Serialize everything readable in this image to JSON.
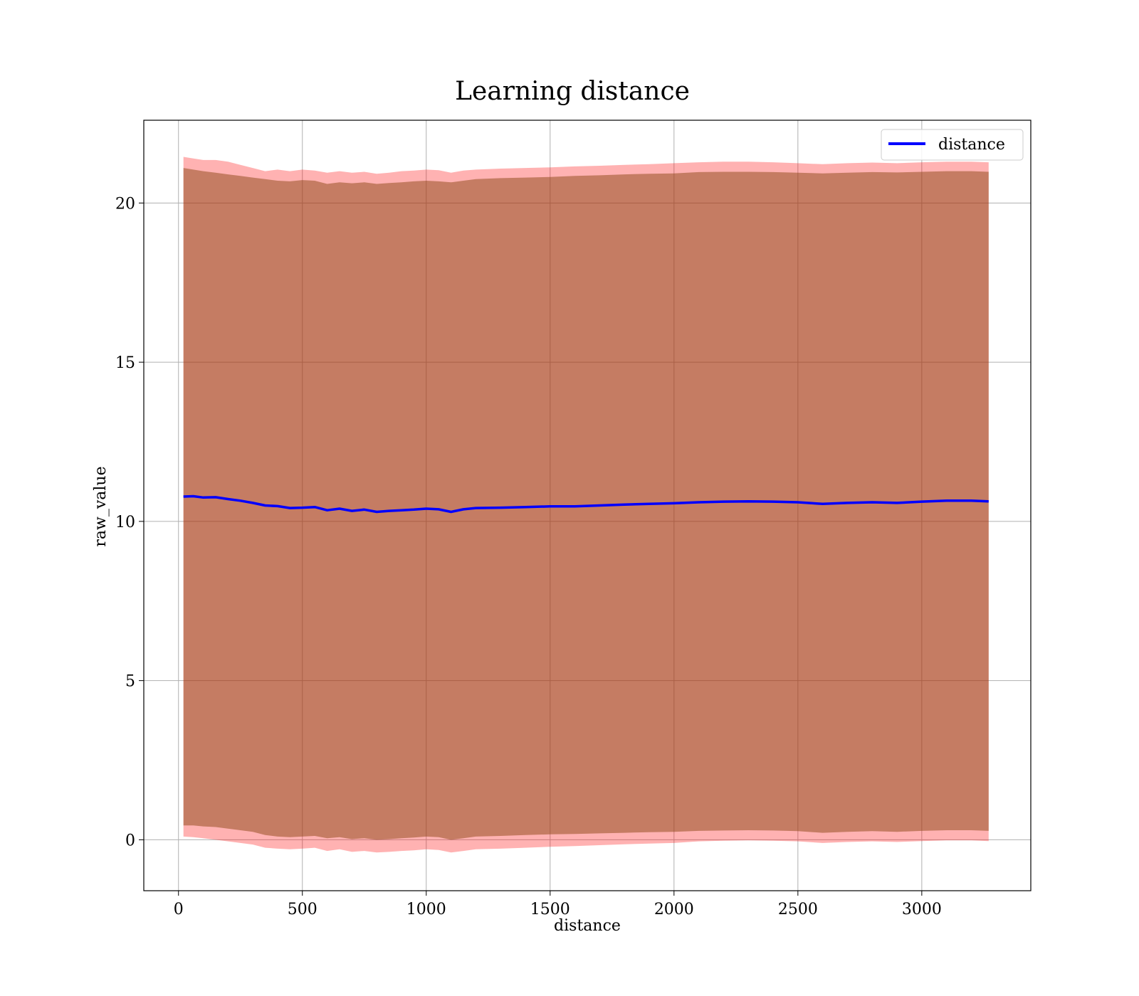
{
  "chart_data": {
    "type": "line",
    "title": "Learning distance",
    "xlabel": "distance",
    "ylabel": "raw_value",
    "xlim": [
      -140,
      3440
    ],
    "ylim": [
      -1.6,
      22.6
    ],
    "xticks": [
      0,
      500,
      1000,
      1500,
      2000,
      2500,
      3000
    ],
    "yticks": [
      0,
      5,
      10,
      15,
      20
    ],
    "grid": true,
    "legend": {
      "position": "top-right",
      "entries": [
        "distance"
      ]
    },
    "colors": {
      "line": "#0000ff",
      "inner_band": "#8b4513",
      "outer_band": "#ff0000",
      "grid": "#b0b0b0"
    },
    "series": [
      {
        "name": "distance",
        "x": [
          20,
          60,
          100,
          150,
          200,
          250,
          300,
          350,
          400,
          450,
          500,
          550,
          600,
          650,
          700,
          750,
          800,
          850,
          900,
          950,
          1000,
          1050,
          1100,
          1150,
          1200,
          1300,
          1400,
          1500,
          1600,
          1700,
          1800,
          1900,
          2000,
          2100,
          2200,
          2300,
          2400,
          2500,
          2600,
          2700,
          2800,
          2900,
          3000,
          3100,
          3200,
          3270
        ],
        "values": [
          10.78,
          10.79,
          10.75,
          10.76,
          10.7,
          10.65,
          10.58,
          10.5,
          10.48,
          10.42,
          10.43,
          10.45,
          10.35,
          10.4,
          10.33,
          10.37,
          10.3,
          10.33,
          10.35,
          10.37,
          10.4,
          10.38,
          10.3,
          10.38,
          10.42,
          10.43,
          10.45,
          10.47,
          10.47,
          10.5,
          10.53,
          10.55,
          10.57,
          10.6,
          10.62,
          10.63,
          10.62,
          10.6,
          10.55,
          10.58,
          10.6,
          10.58,
          10.62,
          10.65,
          10.65,
          10.63
        ],
        "inner_upper": [
          21.1,
          21.05,
          21.0,
          20.95,
          20.9,
          20.85,
          20.8,
          20.75,
          20.7,
          20.68,
          20.72,
          20.7,
          20.6,
          20.65,
          20.62,
          20.65,
          20.6,
          20.63,
          20.65,
          20.68,
          20.7,
          20.68,
          20.65,
          20.7,
          20.75,
          20.78,
          20.8,
          20.82,
          20.85,
          20.87,
          20.9,
          20.92,
          20.93,
          20.97,
          20.98,
          20.98,
          20.97,
          20.95,
          20.93,
          20.95,
          20.97,
          20.96,
          20.98,
          21.0,
          21.0,
          20.98
        ],
        "inner_lower": [
          0.45,
          0.45,
          0.42,
          0.4,
          0.35,
          0.3,
          0.25,
          0.15,
          0.1,
          0.08,
          0.1,
          0.12,
          0.05,
          0.08,
          0.02,
          0.05,
          0.0,
          0.02,
          0.05,
          0.07,
          0.1,
          0.08,
          0.0,
          0.05,
          0.1,
          0.12,
          0.15,
          0.17,
          0.18,
          0.2,
          0.22,
          0.24,
          0.25,
          0.28,
          0.29,
          0.3,
          0.29,
          0.27,
          0.22,
          0.25,
          0.27,
          0.25,
          0.28,
          0.3,
          0.3,
          0.28
        ],
        "outer_upper": [
          21.45,
          21.4,
          21.35,
          21.35,
          21.3,
          21.2,
          21.1,
          21.0,
          21.05,
          21.0,
          21.05,
          21.02,
          20.95,
          21.0,
          20.95,
          20.98,
          20.92,
          20.95,
          21.0,
          21.02,
          21.05,
          21.03,
          20.95,
          21.02,
          21.05,
          21.08,
          21.1,
          21.12,
          21.15,
          21.17,
          21.2,
          21.22,
          21.25,
          21.28,
          21.3,
          21.3,
          21.28,
          21.25,
          21.22,
          21.25,
          21.27,
          21.25,
          21.28,
          21.3,
          21.3,
          21.28
        ],
        "outer_lower": [
          0.1,
          0.08,
          0.05,
          0.0,
          -0.05,
          -0.1,
          -0.15,
          -0.25,
          -0.28,
          -0.3,
          -0.28,
          -0.25,
          -0.35,
          -0.3,
          -0.38,
          -0.35,
          -0.4,
          -0.38,
          -0.35,
          -0.33,
          -0.3,
          -0.32,
          -0.4,
          -0.35,
          -0.3,
          -0.28,
          -0.25,
          -0.22,
          -0.2,
          -0.17,
          -0.14,
          -0.12,
          -0.1,
          -0.05,
          -0.03,
          -0.02,
          -0.03,
          -0.05,
          -0.1,
          -0.07,
          -0.05,
          -0.07,
          -0.04,
          -0.02,
          -0.02,
          -0.04
        ]
      }
    ]
  }
}
